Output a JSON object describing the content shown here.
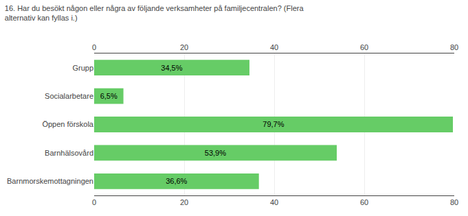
{
  "chart_data": {
    "type": "bar",
    "orientation": "horizontal",
    "title": "16. Har du besökt någon eller några av följande verksamheter på familjecentralen? (Flera alternativ kan fyllas i.)",
    "categories": [
      "Barnmorskemottagningen",
      "Barnhälsovård",
      "Öppen förskola",
      "Socialarbetare",
      "Grupp"
    ],
    "values": [
      36.6,
      53.9,
      79.7,
      6.5,
      34.5
    ],
    "value_labels": [
      "36,6%",
      "53,9%",
      "79,7%",
      "6,5%",
      "34,5%"
    ],
    "data_labels": true,
    "color": "#66CC66",
    "xlim": [
      0,
      80
    ],
    "xticks": [
      0,
      20,
      40,
      60,
      80
    ],
    "grid": true
  }
}
